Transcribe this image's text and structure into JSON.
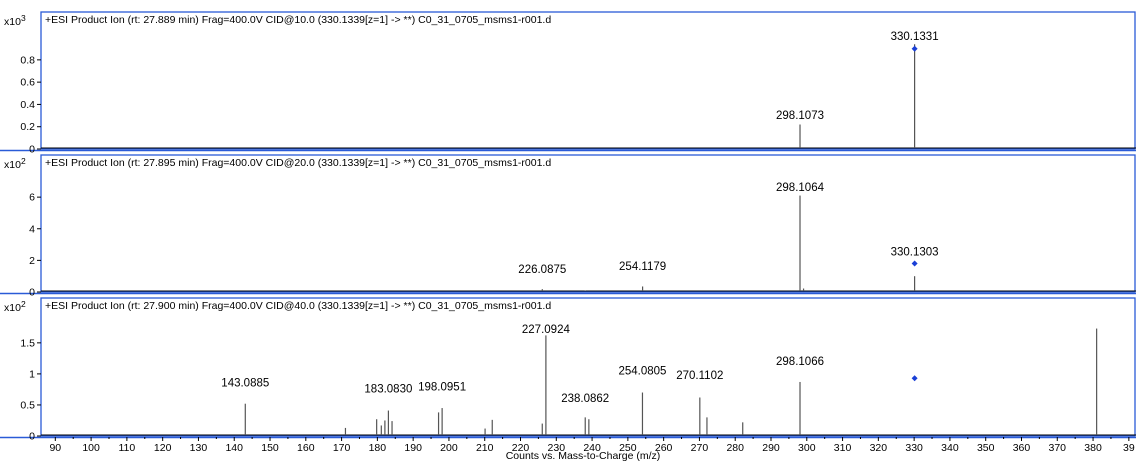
{
  "chart_data": {
    "type": "bar",
    "xlabel": "Counts vs. Mass-to-Charge (m/z)",
    "xlim": [
      86,
      392
    ],
    "x_ticks": [
      "90",
      "100",
      "110",
      "120",
      "130",
      "140",
      "150",
      "160",
      "170",
      "180",
      "190",
      "200",
      "210",
      "220",
      "230",
      "240",
      "250",
      "260",
      "270",
      "280",
      "290",
      "300",
      "310",
      "320",
      "330",
      "340",
      "350",
      "360",
      "370",
      "380",
      "39"
    ],
    "panels": [
      {
        "title": "+ESI Product Ion (rt: 27.889 min) Frag=400.0V CID@10.0 (330.1339[z=1] -> **) C0_31_0705_msms1-r001.d",
        "scale": "x10 3",
        "ylim": [
          0,
          1.05
        ],
        "y_ticks": [
          "0",
          "0.2",
          "0.4",
          "0.6",
          "0.8"
        ],
        "peaks": [
          {
            "mz": 298.1073,
            "intensity": 0.22
          },
          {
            "mz": 330.1331,
            "intensity": 0.94
          }
        ],
        "labels": [
          {
            "text": "298.1073",
            "mz": 298.1073,
            "y": 0.27
          },
          {
            "text": "330.1331",
            "mz": 330.1331,
            "y": 0.98
          }
        ],
        "precursor": {
          "mz": 330.1339,
          "intensity": 0.9
        }
      },
      {
        "title": "+ESI Product Ion (rt: 27.895 min) Frag=400.0V CID@20.0 (330.1339[z=1] -> **) C0_31_0705_msms1-r001.d",
        "scale": "x10 2",
        "ylim": [
          0,
          7.4
        ],
        "y_ticks": [
          "0",
          "2",
          "4",
          "6"
        ],
        "peaks": [
          {
            "mz": 226.0875,
            "intensity": 0.18
          },
          {
            "mz": 238.08,
            "intensity": 0.1
          },
          {
            "mz": 254.1179,
            "intensity": 0.35
          },
          {
            "mz": 298.1064,
            "intensity": 6.1
          },
          {
            "mz": 299.1,
            "intensity": 0.22
          },
          {
            "mz": 330.1303,
            "intensity": 1.0
          }
        ],
        "labels": [
          {
            "text": "226.0875",
            "mz": 226.0875,
            "y": 1.2
          },
          {
            "text": "254.1179",
            "mz": 254.1179,
            "y": 1.4
          },
          {
            "text": "298.1064",
            "mz": 298.1064,
            "y": 6.4
          },
          {
            "text": "330.1303",
            "mz": 330.1303,
            "y": 2.3
          }
        ],
        "precursor": {
          "mz": 330.1339,
          "intensity": 1.8
        }
      },
      {
        "title": "+ESI Product Ion (rt: 27.900 min) Frag=400.0V CID@40.0 (330.1339[z=1] -> **) C0_31_0705_msms1-r001.d",
        "scale": "x10 2",
        "ylim": [
          0,
          1.9
        ],
        "y_ticks": [
          "0",
          "0.5",
          "1",
          "1.5"
        ],
        "peaks": [
          {
            "mz": 143.0885,
            "intensity": 0.52
          },
          {
            "mz": 171.08,
            "intensity": 0.13
          },
          {
            "mz": 179.8,
            "intensity": 0.27
          },
          {
            "mz": 181.1,
            "intensity": 0.17
          },
          {
            "mz": 182.1,
            "intensity": 0.25
          },
          {
            "mz": 183.083,
            "intensity": 0.41
          },
          {
            "mz": 184.1,
            "intensity": 0.24
          },
          {
            "mz": 197.1,
            "intensity": 0.38
          },
          {
            "mz": 198.0951,
            "intensity": 0.45
          },
          {
            "mz": 210.1,
            "intensity": 0.12
          },
          {
            "mz": 212.1,
            "intensity": 0.26
          },
          {
            "mz": 226.08,
            "intensity": 0.2
          },
          {
            "mz": 227.0924,
            "intensity": 1.62
          },
          {
            "mz": 238.0862,
            "intensity": 0.3
          },
          {
            "mz": 239.1,
            "intensity": 0.27
          },
          {
            "mz": 254.0805,
            "intensity": 0.7
          },
          {
            "mz": 270.1102,
            "intensity": 0.62
          },
          {
            "mz": 272.1,
            "intensity": 0.3
          },
          {
            "mz": 282.1,
            "intensity": 0.22
          },
          {
            "mz": 298.1066,
            "intensity": 0.87
          },
          {
            "mz": 381.0,
            "intensity": 1.73
          }
        ],
        "labels": [
          {
            "text": "143.0885",
            "mz": 143.0885,
            "y": 0.8
          },
          {
            "text": "183.0830",
            "mz": 183.083,
            "y": 0.7
          },
          {
            "text": "198.0951",
            "mz": 198.0951,
            "y": 0.73
          },
          {
            "text": "227.0924",
            "mz": 227.0924,
            "y": 1.66
          },
          {
            "text": "238.0862",
            "mz": 238.0862,
            "y": 0.55
          },
          {
            "text": "254.0805",
            "mz": 254.0805,
            "y": 0.99
          },
          {
            "text": "270.1102",
            "mz": 270.1102,
            "y": 0.92
          },
          {
            "text": "298.1066",
            "mz": 298.1066,
            "y": 1.14
          }
        ],
        "precursor": {
          "mz": 330.1339,
          "intensity": 0.93
        }
      }
    ]
  }
}
